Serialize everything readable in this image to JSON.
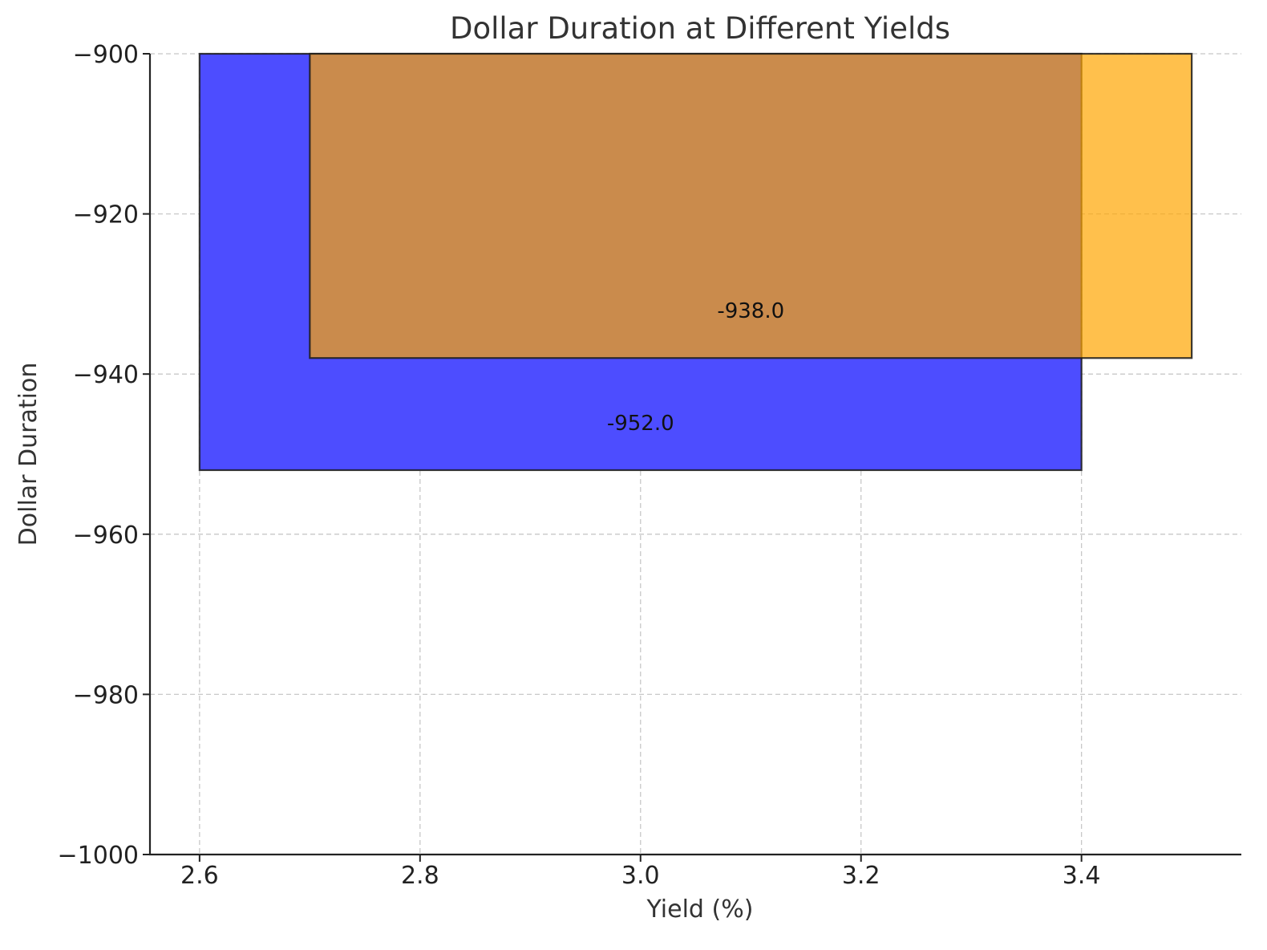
{
  "chart_data": {
    "type": "bar",
    "title": "Dollar Duration at Different Yields",
    "xlabel": "Yield (%)",
    "ylabel": "Dollar Duration",
    "xlim": [
      2.555,
      3.545
    ],
    "ylim": [
      -1000,
      -900
    ],
    "bar_baseline": -900,
    "x_ticks": [
      2.6,
      2.8,
      3.0,
      3.2,
      3.4
    ],
    "x_tick_labels": [
      "2.6",
      "2.8",
      "3.0",
      "3.2",
      "3.4"
    ],
    "y_ticks": [
      -900,
      -920,
      -940,
      -960,
      -980,
      -1000
    ],
    "y_tick_labels": [
      "−900",
      "−920",
      "−940",
      "−960",
      "−980",
      "−1000"
    ],
    "grid": true,
    "series": [
      {
        "x_start": 2.6,
        "x_end": 3.4,
        "value": -952.0,
        "label": "-952.0",
        "color": "#4d4dff"
      },
      {
        "x_start": 2.7,
        "x_end": 3.5,
        "value": -938.0,
        "label": "-938.0",
        "color": "#ffa500",
        "opacity": 0.7
      }
    ]
  }
}
